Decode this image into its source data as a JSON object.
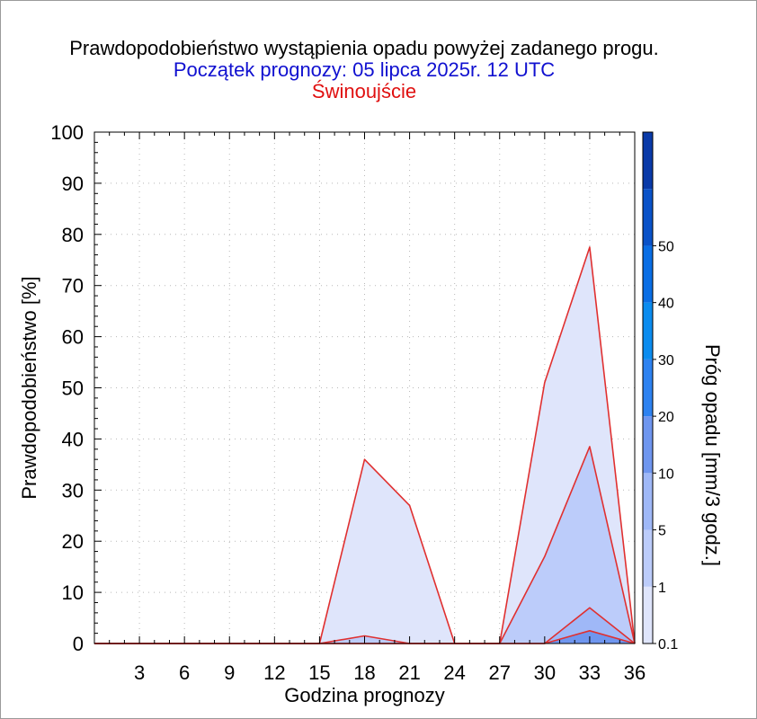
{
  "title": "Prawdopodobieństwo wystąpienia opadu powyżej zadanego progu.",
  "subtitle": "Początek prognozy: 05 lipca 2025r. 12 UTC",
  "location": "Świnoujście",
  "colors": {
    "title": "#000000",
    "subtitle": "#1010d0",
    "location": "#e01010",
    "series_line": "#e03030"
  },
  "chart_data": {
    "type": "area",
    "xlabel": "Godzina prognozy",
    "ylabel": "Prawdopodobieństwo [%]",
    "xlim": [
      0,
      36
    ],
    "ylim": [
      0,
      100
    ],
    "x_ticks": [
      3,
      6,
      9,
      12,
      15,
      18,
      21,
      24,
      27,
      30,
      33,
      36
    ],
    "y_ticks": [
      0,
      10,
      20,
      30,
      40,
      50,
      60,
      70,
      80,
      90,
      100
    ],
    "grid": true,
    "x": [
      0,
      3,
      6,
      9,
      12,
      15,
      18,
      21,
      24,
      27,
      30,
      33,
      36
    ],
    "series": [
      {
        "threshold": 0.1,
        "color": "#dfe5fb",
        "values": [
          0,
          0,
          0,
          0,
          0,
          0,
          36,
          27,
          0,
          0,
          51,
          77.5,
          0
        ]
      },
      {
        "threshold": 1,
        "color": "#bcccfa",
        "values": [
          0,
          0,
          0,
          0,
          0,
          0,
          1.5,
          0,
          0,
          0,
          17,
          38.5,
          0
        ]
      },
      {
        "threshold": 5,
        "color": "#9fb8f7",
        "values": [
          0,
          0,
          0,
          0,
          0,
          0,
          0,
          0,
          0,
          0,
          0,
          7,
          0
        ]
      },
      {
        "threshold": 10,
        "color": "#6f96ef",
        "values": [
          0,
          0,
          0,
          0,
          0,
          0,
          0,
          0,
          0,
          0,
          0,
          2.5,
          0
        ]
      }
    ],
    "colorbar": {
      "label": "Próg opadu [mm/3 godz.]",
      "labels": [
        "0.1",
        "1",
        "5",
        "10",
        "20",
        "30",
        "40",
        "50"
      ],
      "band_colors": [
        "#dfe5fb",
        "#bcccfa",
        "#9fb8f7",
        "#6f96ef",
        "#2e82f0",
        "#0b8cef",
        "#0a6ee4",
        "#0a52c8",
        "#0a3aa8"
      ]
    }
  }
}
